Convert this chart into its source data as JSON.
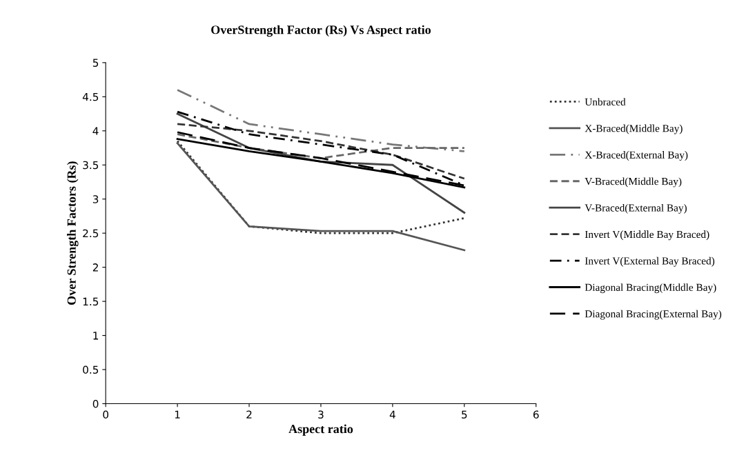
{
  "chart_data": {
    "type": "line",
    "title": "OverStrength Factor (Rs) Vs Aspect ratio",
    "xlabel": "Aspect ratio",
    "ylabel": "Over Strength Factors (Rs)",
    "x": [
      1,
      2,
      3,
      4,
      5
    ],
    "xlim": [
      0,
      6
    ],
    "xticks": [
      0,
      1,
      2,
      3,
      4,
      5,
      6
    ],
    "ylim": [
      0,
      5
    ],
    "yticks": [
      0,
      0.5,
      1,
      1.5,
      2,
      2.5,
      3,
      3.5,
      4,
      4.5,
      5
    ],
    "grid": false,
    "legend": "right",
    "marker": "none",
    "series": [
      {
        "name": "Unbraced",
        "color": "#333333",
        "line_style": "dotted",
        "values": [
          3.85,
          2.6,
          2.5,
          2.5,
          2.72
        ]
      },
      {
        "name": "X-Braced(Middle Bay)",
        "color": "#555555",
        "line_style": "solid",
        "values": [
          3.82,
          2.6,
          2.53,
          2.53,
          2.25
        ]
      },
      {
        "name": "X-Braced(External Bay)",
        "color": "#777777",
        "line_style": "dashdotdot",
        "values": [
          4.6,
          4.1,
          3.95,
          3.8,
          3.7
        ]
      },
      {
        "name": "V-Braced(Middle Bay)",
        "color": "#666666",
        "line_style": "dashed",
        "values": [
          3.95,
          3.75,
          3.6,
          3.75,
          3.75
        ]
      },
      {
        "name": "V-Braced(External Bay)",
        "color": "#444444",
        "line_style": "solid",
        "values": [
          4.25,
          3.75,
          3.55,
          3.5,
          2.8
        ]
      },
      {
        "name": "Invert V(Middle Bay Braced)",
        "color": "#333333",
        "line_style": "dashed",
        "values": [
          4.1,
          4.0,
          3.85,
          3.65,
          3.3
        ]
      },
      {
        "name": "Invert V(External Bay Braced)",
        "color": "#000000",
        "line_style": "dashdot",
        "values": [
          4.28,
          3.95,
          3.8,
          3.65,
          3.2
        ]
      },
      {
        "name": "Diagonal Bracing(Middle Bay)",
        "color": "#000000",
        "line_style": "solid",
        "values": [
          3.88,
          3.7,
          3.55,
          3.38,
          3.17
        ]
      },
      {
        "name": "Diagonal Bracing(External Bay)",
        "color": "#000000",
        "line_style": "longdash",
        "values": [
          3.98,
          3.75,
          3.6,
          3.4,
          3.2
        ]
      }
    ]
  }
}
